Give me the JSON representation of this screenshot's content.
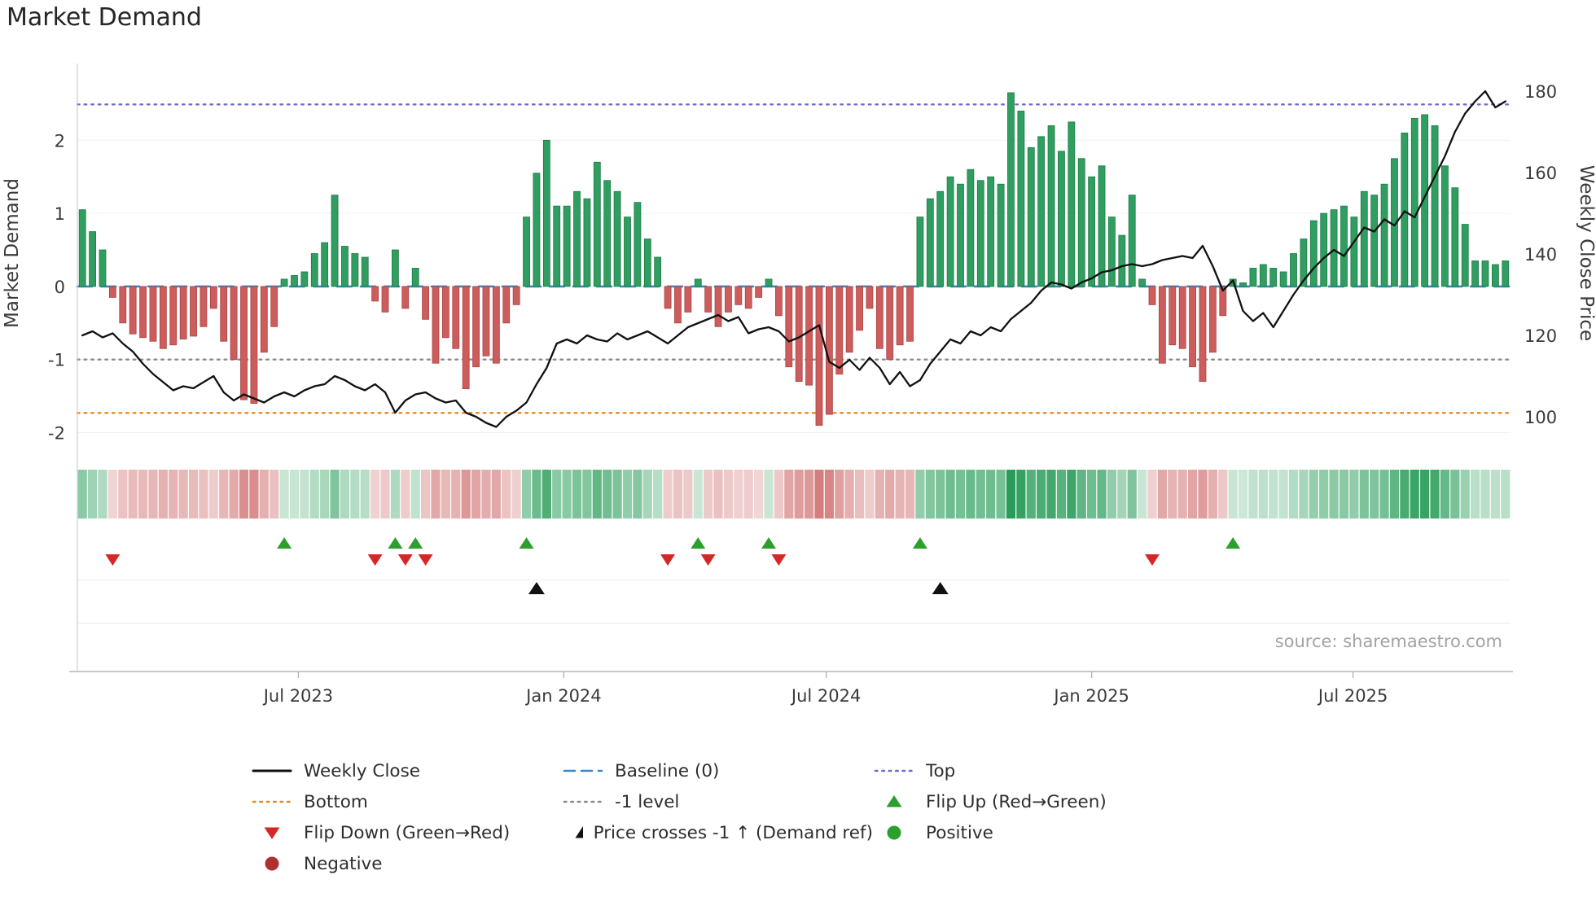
{
  "title": "Market Demand",
  "source": "source: sharemaestro.com",
  "chart_data": {
    "type": "bar+line",
    "title": "Market Demand",
    "x_unit": "weekly",
    "x_ticks": [
      {
        "label": "Jul 2023",
        "week": 21.4
      },
      {
        "label": "Jan 2024",
        "week": 47.7
      },
      {
        "label": "Jul 2024",
        "week": 73.7
      },
      {
        "label": "Jan 2025",
        "week": 100.0
      },
      {
        "label": "Jul 2025",
        "week": 125.9
      }
    ],
    "left_axis": {
      "label": "Market Demand",
      "ticks": [
        2,
        1,
        0,
        -1,
        -2
      ],
      "lim": [
        -2.15,
        3.05
      ]
    },
    "right_axis": {
      "label": "Weekly Close Price",
      "ticks": [
        180,
        160,
        140,
        120,
        100
      ],
      "lim": [
        93.4,
        186.8
      ]
    },
    "series": [
      {
        "name": "Market Demand",
        "type": "bar",
        "axis": "left",
        "positive_color": "#2f9e60",
        "negative_color": "#cd5c5c",
        "positive_edge": "#1f7a45",
        "negative_edge": "#a94444",
        "values": [
          1.05,
          0.75,
          0.5,
          -0.15,
          -0.5,
          -0.65,
          -0.7,
          -0.75,
          -0.85,
          -0.8,
          -0.72,
          -0.68,
          -0.55,
          -0.3,
          -0.75,
          -1.0,
          -1.55,
          -1.6,
          -0.9,
          -0.55,
          0.1,
          0.15,
          0.2,
          0.45,
          0.6,
          1.25,
          0.55,
          0.45,
          0.4,
          -0.2,
          -0.35,
          0.5,
          -0.3,
          0.25,
          -0.45,
          -1.05,
          -0.7,
          -0.85,
          -1.4,
          -1.1,
          -0.95,
          -1.05,
          -0.5,
          -0.25,
          0.95,
          1.55,
          2.0,
          1.1,
          1.1,
          1.3,
          1.2,
          1.7,
          1.45,
          1.3,
          0.95,
          1.15,
          0.65,
          0.4,
          -0.3,
          -0.5,
          -0.35,
          0.1,
          -0.35,
          -0.55,
          -0.35,
          -0.25,
          -0.3,
          -0.15,
          0.1,
          -0.4,
          -1.1,
          -1.3,
          -1.35,
          -1.9,
          -1.75,
          -1.2,
          -0.9,
          -0.6,
          -0.3,
          -0.85,
          -1.0,
          -0.8,
          -0.75,
          0.95,
          1.2,
          1.3,
          1.5,
          1.4,
          1.6,
          1.45,
          1.5,
          1.4,
          2.65,
          2.4,
          1.9,
          2.05,
          2.2,
          1.85,
          2.25,
          1.75,
          1.5,
          1.65,
          0.95,
          0.7,
          1.25,
          0.1,
          -0.25,
          -1.05,
          -0.8,
          -0.85,
          -1.1,
          -1.3,
          -0.9,
          -0.4,
          0.1,
          0.05,
          0.25,
          0.3,
          0.25,
          0.2,
          0.45,
          0.65,
          0.9,
          1.0,
          1.05,
          1.1,
          0.95,
          1.3,
          1.25,
          1.4,
          1.75,
          2.1,
          2.3,
          2.35,
          2.2,
          1.65,
          1.35,
          0.85,
          0.35,
          0.35,
          0.3,
          0.35
        ]
      },
      {
        "name": "Weekly Close",
        "type": "line",
        "axis": "right",
        "color": "#111111",
        "values": [
          120,
          121,
          119.5,
          120.5,
          118,
          116,
          113,
          110.5,
          108.5,
          106.5,
          107.5,
          107,
          108.5,
          110,
          106,
          104,
          105.5,
          104.5,
          103.5,
          105,
          106,
          105,
          106.5,
          107.5,
          108,
          110,
          109,
          107.5,
          106.5,
          108,
          106,
          101,
          104,
          105.5,
          106,
          104.5,
          103.5,
          104,
          101,
          100,
          98.5,
          97.5,
          100,
          101.5,
          103.5,
          108,
          112,
          118,
          119,
          118,
          120,
          119,
          118.5,
          120.5,
          119,
          120,
          121,
          119.5,
          118,
          120,
          122,
          123,
          124,
          125,
          123.5,
          124.5,
          120.5,
          121.5,
          122,
          121,
          118.5,
          119.5,
          121,
          122.5,
          113.5,
          112,
          114,
          111.5,
          114.5,
          112,
          108,
          111,
          107.5,
          109,
          113,
          116,
          119,
          118,
          121,
          120,
          122,
          121,
          124,
          126,
          128,
          131,
          133,
          132.5,
          131.5,
          133,
          134,
          135.5,
          136,
          137,
          137.5,
          137,
          137.5,
          138.5,
          139,
          139.5,
          139,
          142,
          137,
          131,
          133.5,
          126,
          123.5,
          125.5,
          122,
          126,
          130,
          133.5,
          136.5,
          139,
          141,
          139.5,
          143,
          146.5,
          145.5,
          148.5,
          147,
          150.5,
          149,
          154,
          159,
          164,
          170,
          174.5,
          177.5,
          180,
          176,
          177.5
        ]
      }
    ],
    "reference_lines": [
      {
        "name": "Top",
        "value": 2.49,
        "color": "#6a6ad4",
        "style": "dotted"
      },
      {
        "name": "Baseline (0)",
        "value": 0,
        "color": "#3a87c8",
        "style": "dashed"
      },
      {
        "name": "-1 level",
        "value": -1,
        "color": "#8a8a8a",
        "style": "dotted"
      },
      {
        "name": "Bottom",
        "value": -1.73,
        "color": "#e8871e",
        "style": "dotted"
      }
    ],
    "heatmap": {
      "description": "weekly demand sign/intensity strip",
      "positive_color": "#289c58",
      "negative_color": "#c95c5c"
    },
    "markers": {
      "flip_up_weeks": [
        20,
        31,
        33,
        44,
        61,
        68,
        83,
        114
      ],
      "flip_down_weeks": [
        3,
        29,
        32,
        34,
        58,
        62,
        69,
        106
      ],
      "price_cross_weeks": [
        45,
        85
      ],
      "flip_up_color": "#2ca02c",
      "flip_down_color": "#d62728",
      "price_cross_color": "#111111"
    }
  },
  "legend": {
    "items": [
      {
        "label": "Weekly Close",
        "symbol": "line",
        "color": "#111111"
      },
      {
        "label": "Baseline (0)",
        "symbol": "dashed-line",
        "color": "#3a87c8"
      },
      {
        "label": "Top",
        "symbol": "dotted-line",
        "color": "#6a6ad4"
      },
      {
        "label": "Bottom",
        "symbol": "dotted-line",
        "color": "#e8871e"
      },
      {
        "label": "-1 level",
        "symbol": "dotted-line",
        "color": "#8a8a8a"
      },
      {
        "label": "Flip Up (Red→Green)",
        "symbol": "triangle-up",
        "color": "#2ca02c"
      },
      {
        "label": "Flip Down (Green→Red)",
        "symbol": "triangle-down",
        "color": "#d62728"
      },
      {
        "label": "Price crosses -1 ↑ (Demand ref)",
        "symbol": "triangle-up",
        "color": "#111111"
      },
      {
        "label": "Positive",
        "symbol": "circle",
        "color": "#2ca02c"
      },
      {
        "label": "Negative",
        "symbol": "circle",
        "color": "#b03030"
      }
    ]
  }
}
